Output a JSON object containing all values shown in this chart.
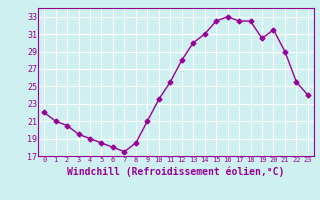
{
  "x": [
    0,
    1,
    2,
    3,
    4,
    5,
    6,
    7,
    8,
    9,
    10,
    11,
    12,
    13,
    14,
    15,
    16,
    17,
    18,
    19,
    20,
    21,
    22,
    23
  ],
  "y": [
    22.0,
    21.0,
    20.5,
    19.5,
    19.0,
    18.5,
    18.0,
    17.5,
    18.5,
    21.0,
    23.5,
    25.5,
    28.0,
    30.0,
    31.0,
    32.5,
    33.0,
    32.5,
    32.5,
    30.5,
    31.5,
    29.0,
    25.5,
    24.0
  ],
  "line_color": "#990099",
  "marker": "D",
  "markersize": 2.5,
  "linewidth": 1.0,
  "xlabel": "Windchill (Refroidissement éolien,°C)",
  "xlabel_fontsize": 7,
  "bg_color": "#cff0f0",
  "grid_color": "#ffffff",
  "tick_label_color": "#990099",
  "axis_label_color": "#990099",
  "ylim": [
    17,
    34
  ],
  "xlim": [
    -0.5,
    23.5
  ],
  "yticks": [
    17,
    19,
    21,
    23,
    25,
    27,
    29,
    31,
    33
  ],
  "xticks": [
    0,
    1,
    2,
    3,
    4,
    5,
    6,
    7,
    8,
    9,
    10,
    11,
    12,
    13,
    14,
    15,
    16,
    17,
    18,
    19,
    20,
    21,
    22,
    23
  ]
}
